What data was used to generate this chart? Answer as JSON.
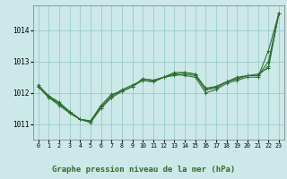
{
  "bg_color": "#cce8e8",
  "grid_color": "#99cccc",
  "line_color": "#2d6e2d",
  "title": "Graphe pression niveau de la mer (hPa)",
  "xlim": [
    -0.5,
    23.5
  ],
  "ylim": [
    1010.5,
    1014.8
  ],
  "yticks": [
    1011,
    1012,
    1013,
    1014
  ],
  "xticks": [
    0,
    1,
    2,
    3,
    4,
    5,
    6,
    7,
    8,
    9,
    10,
    11,
    12,
    13,
    14,
    15,
    16,
    17,
    18,
    19,
    20,
    21,
    22,
    23
  ],
  "series": [
    [
      1012.25,
      1011.9,
      1011.65,
      1011.35,
      1011.15,
      1011.1,
      1011.55,
      1011.85,
      1012.05,
      1012.2,
      1012.45,
      1012.4,
      1012.5,
      1012.6,
      1012.55,
      1012.5,
      1012.0,
      1012.1,
      1012.3,
      1012.4,
      1012.5,
      1012.5,
      1013.35,
      1014.55
    ],
    [
      1012.2,
      1011.9,
      1011.7,
      1011.4,
      1011.15,
      1011.05,
      1011.55,
      1011.9,
      1012.1,
      1012.25,
      1012.4,
      1012.35,
      1012.5,
      1012.55,
      1012.6,
      1012.55,
      1012.1,
      1012.15,
      1012.35,
      1012.45,
      1012.55,
      1012.55,
      1013.0,
      1014.55
    ],
    [
      1012.2,
      1011.85,
      1011.65,
      1011.4,
      1011.15,
      1011.1,
      1011.6,
      1011.95,
      1012.05,
      1012.2,
      1012.4,
      1012.35,
      1012.5,
      1012.6,
      1012.65,
      1012.6,
      1012.15,
      1012.2,
      1012.35,
      1012.5,
      1012.55,
      1012.55,
      1012.85,
      1014.55
    ],
    [
      1012.2,
      1011.85,
      1011.6,
      1011.35,
      1011.15,
      1011.05,
      1011.5,
      1011.85,
      1012.05,
      1012.2,
      1012.45,
      1012.4,
      1012.5,
      1012.65,
      1012.65,
      1012.6,
      1012.1,
      1012.2,
      1012.35,
      1012.45,
      1012.55,
      1012.6,
      1012.8,
      1014.55
    ]
  ]
}
